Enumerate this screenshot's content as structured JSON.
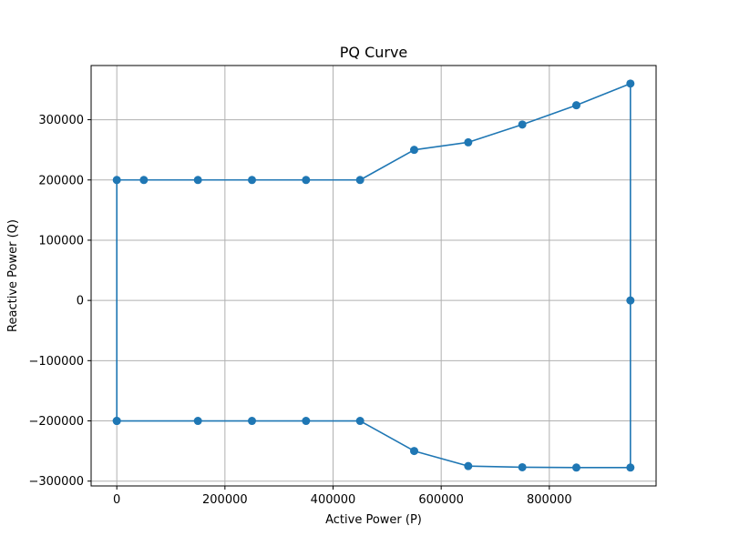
{
  "chart_data": {
    "type": "line",
    "title": "PQ Curve",
    "xlabel": "Active Power (P)",
    "ylabel": "Reactive Power (Q)",
    "xlim": [
      -47500,
      997500
    ],
    "ylim": [
      -308000,
      390000
    ],
    "xticks": [
      0,
      200000,
      400000,
      600000,
      800000
    ],
    "xtick_labels": [
      "0",
      "200000",
      "400000",
      "600000",
      "800000"
    ],
    "yticks": [
      -300000,
      -200000,
      -100000,
      0,
      100000,
      200000,
      300000
    ],
    "ytick_labels": [
      "−300000",
      "−200000",
      "−100000",
      "0",
      "100000",
      "200000",
      "300000"
    ],
    "grid": true,
    "marker": "circle",
    "color": "#1f77b4",
    "series": [
      {
        "points": [
          [
            0,
            -200000
          ],
          [
            0,
            200000
          ],
          [
            50000,
            200000
          ],
          [
            150000,
            200000
          ],
          [
            250000,
            200000
          ],
          [
            350000,
            200000
          ],
          [
            450000,
            200000
          ],
          [
            550000,
            250000
          ],
          [
            650000,
            262500
          ],
          [
            750000,
            292000
          ],
          [
            850000,
            324000
          ],
          [
            950000,
            360000
          ],
          [
            950000,
            0
          ],
          [
            950000,
            -277500
          ],
          [
            850000,
            -277500
          ],
          [
            750000,
            -277000
          ],
          [
            650000,
            -275000
          ],
          [
            550000,
            -250000
          ],
          [
            450000,
            -200000
          ],
          [
            350000,
            -200000
          ],
          [
            250000,
            -200000
          ],
          [
            150000,
            -200000
          ],
          [
            0,
            -200000
          ]
        ]
      }
    ]
  }
}
